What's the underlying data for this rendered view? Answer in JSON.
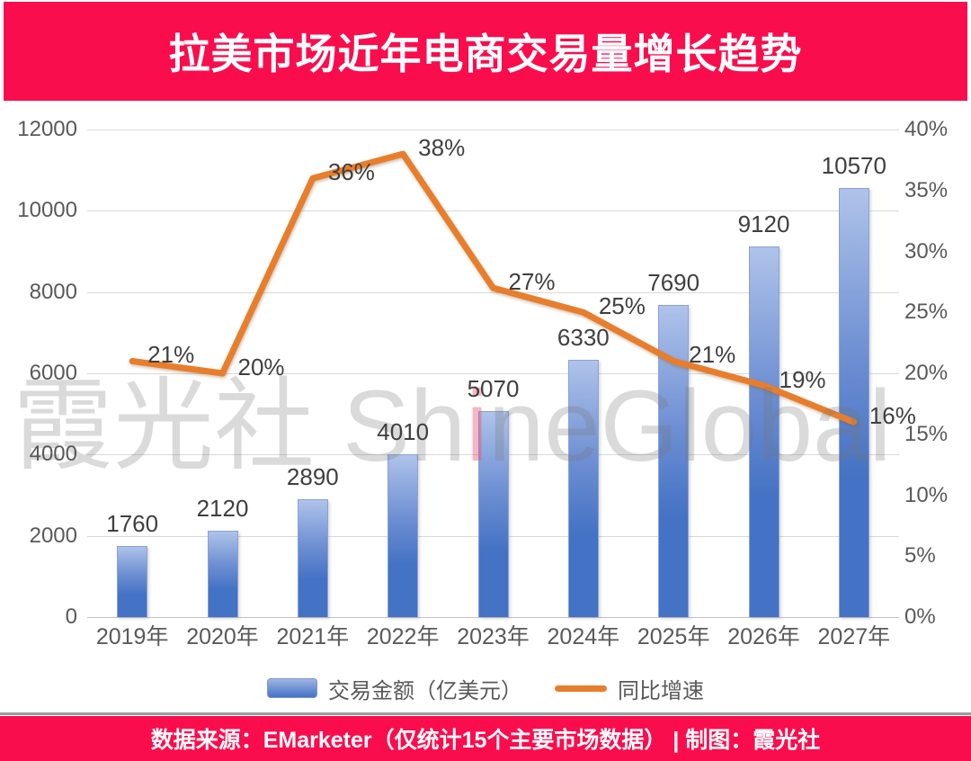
{
  "header": {
    "title": "拉美市场近年电商交易量增长趋势"
  },
  "watermark": {
    "prefix": "霞光社 Sh",
    "highlight": "i",
    "suffix": "neGlobal"
  },
  "chart_data": {
    "type": "combo_bar_line",
    "title": "拉美市场近年电商交易量增长趋势",
    "categories": [
      "2019年",
      "2020年",
      "2021年",
      "2022年",
      "2023年",
      "2024年",
      "2025年",
      "2026年",
      "2027年"
    ],
    "series": [
      {
        "name": "交易金额（亿美元）",
        "type": "bar",
        "axis": "left",
        "values": [
          1760,
          2120,
          2890,
          4010,
          5070,
          6330,
          7690,
          9120,
          10570
        ],
        "labels": [
          "1760",
          "2120",
          "2890",
          "4010",
          "5070",
          "6330",
          "7690",
          "9120",
          "10570"
        ]
      },
      {
        "name": "同比增速",
        "type": "line",
        "axis": "right",
        "values": [
          21,
          20,
          36,
          38,
          27,
          25,
          21,
          19,
          16
        ],
        "labels": [
          "21%",
          "20%",
          "36%",
          "38%",
          "27%",
          "25%",
          "21%",
          "19%",
          "16%"
        ]
      }
    ],
    "left_axis": {
      "min": 0,
      "max": 12000,
      "tick_step": 2000,
      "ticks": [
        "0",
        "2000",
        "4000",
        "6000",
        "8000",
        "10000",
        "12000"
      ]
    },
    "right_axis": {
      "min": 0,
      "max": 40,
      "tick_step": 5,
      "ticks": [
        "0%",
        "5%",
        "10%",
        "15%",
        "20%",
        "25%",
        "30%",
        "35%",
        "40%"
      ]
    },
    "grid": true,
    "legend_position": "bottom"
  },
  "legend": {
    "bar_label": "交易金额（亿美元）",
    "line_label": "同比增速"
  },
  "footer": {
    "text": "数据来源：EMarketer（仅统计15个主要市场数据） | 制图：霞光社"
  },
  "colors": {
    "banner_red": "#fa0d4d",
    "bar_top": "#afc3ea",
    "bar_bottom": "#4472c4",
    "line_orange": "#e87e2b",
    "grid_gray": "#d9d9d9",
    "tick_text": "#595959",
    "label_text": "#3f3f3f"
  }
}
